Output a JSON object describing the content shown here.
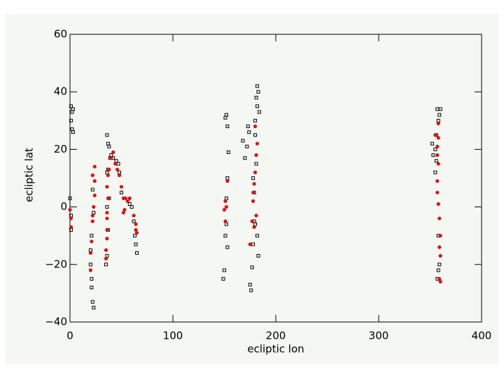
{
  "chart_data": {
    "type": "scatter",
    "x_label": "ecliptic lon",
    "y_label": "ecliptic lat",
    "xlim": [
      0,
      400
    ],
    "xticks": [
      0,
      100,
      200,
      300,
      400
    ],
    "ylim": [
      -40,
      60
    ],
    "yticks": [
      {
        "value": -40,
        "label": "−40"
      },
      {
        "value": -20,
        "label": "−20"
      },
      0,
      20,
      40,
      60
    ],
    "series": [
      {
        "color": "#000000",
        "marker": "square-open",
        "x": [
          1,
          2,
          3,
          1,
          2,
          3,
          0,
          1,
          1,
          20,
          21,
          21,
          22,
          23,
          22,
          23,
          21,
          20,
          36,
          37,
          38,
          37,
          36,
          35,
          36,
          37,
          38,
          36,
          39,
          40,
          42,
          45,
          47,
          48,
          50,
          58,
          60,
          62,
          63,
          64,
          65,
          149,
          150,
          151,
          152,
          153,
          154,
          153,
          152,
          151,
          153,
          152,
          168,
          170,
          172,
          173,
          174,
          175,
          176,
          177,
          178,
          179,
          180,
          181,
          182,
          183,
          182,
          184,
          180,
          181,
          179,
          182,
          180,
          183,
          178,
          352,
          353,
          355,
          356,
          357,
          358,
          359,
          360,
          355,
          358,
          357,
          359,
          358,
          356
        ],
        "y": [
          35,
          33,
          34,
          30,
          27,
          26,
          3,
          -3,
          -8,
          -20,
          -25,
          -28,
          -33,
          -35,
          6,
          -2,
          -10,
          -15,
          25,
          22,
          21,
          13,
          12,
          -20,
          -17,
          -8,
          3,
          0,
          17,
          18,
          17,
          16,
          15,
          12,
          5,
          1,
          0,
          -5,
          -10,
          -13,
          -16,
          -25,
          -22,
          31,
          32,
          28,
          19,
          10,
          3,
          -10,
          -14,
          -6,
          23,
          17,
          21,
          28,
          26,
          -27,
          -29,
          -21,
          -13,
          -5,
          30,
          38,
          42,
          40,
          35,
          33,
          25,
          15,
          5,
          -10,
          -6,
          -17,
          10,
          22,
          18,
          20,
          16,
          34,
          30,
          32,
          34,
          12,
          -22,
          -25,
          -20,
          -10,
          25
        ]
      },
      {
        "color": "#dd1111",
        "marker": "circle",
        "x": [
          0,
          1,
          1,
          20,
          20,
          21,
          22,
          22,
          23,
          24,
          24,
          24,
          22,
          35,
          35,
          36,
          36,
          36,
          36,
          37,
          36,
          37,
          38,
          40,
          42,
          44,
          46,
          48,
          50,
          52,
          54,
          56,
          58,
          62,
          64,
          65,
          64,
          53,
          52,
          150,
          151,
          152,
          153,
          151,
          175,
          177,
          178,
          179,
          180,
          181,
          182,
          180,
          178,
          181,
          179,
          355,
          357,
          358,
          357,
          357,
          358,
          359,
          360,
          359,
          360,
          359,
          360,
          358,
          358,
          357
        ],
        "y": [
          -1,
          -4,
          -7,
          -16,
          -22,
          -12,
          -5,
          -3,
          0,
          4,
          9,
          14,
          11,
          -18,
          -15,
          -11,
          -8,
          -4,
          -2,
          3,
          7,
          11,
          13,
          17,
          19,
          15,
          13,
          11,
          7,
          3,
          3,
          2,
          3,
          -3,
          -6,
          -9,
          -8,
          -1,
          -2,
          -1,
          -5,
          0,
          9,
          2,
          -13,
          -5,
          5,
          8,
          12,
          18,
          22,
          28,
          2,
          -3,
          -7,
          25,
          21,
          15,
          9,
          5,
          1,
          -4,
          -10,
          -14,
          -17,
          -25,
          -26,
          24,
          29,
          18
        ]
      }
    ]
  }
}
